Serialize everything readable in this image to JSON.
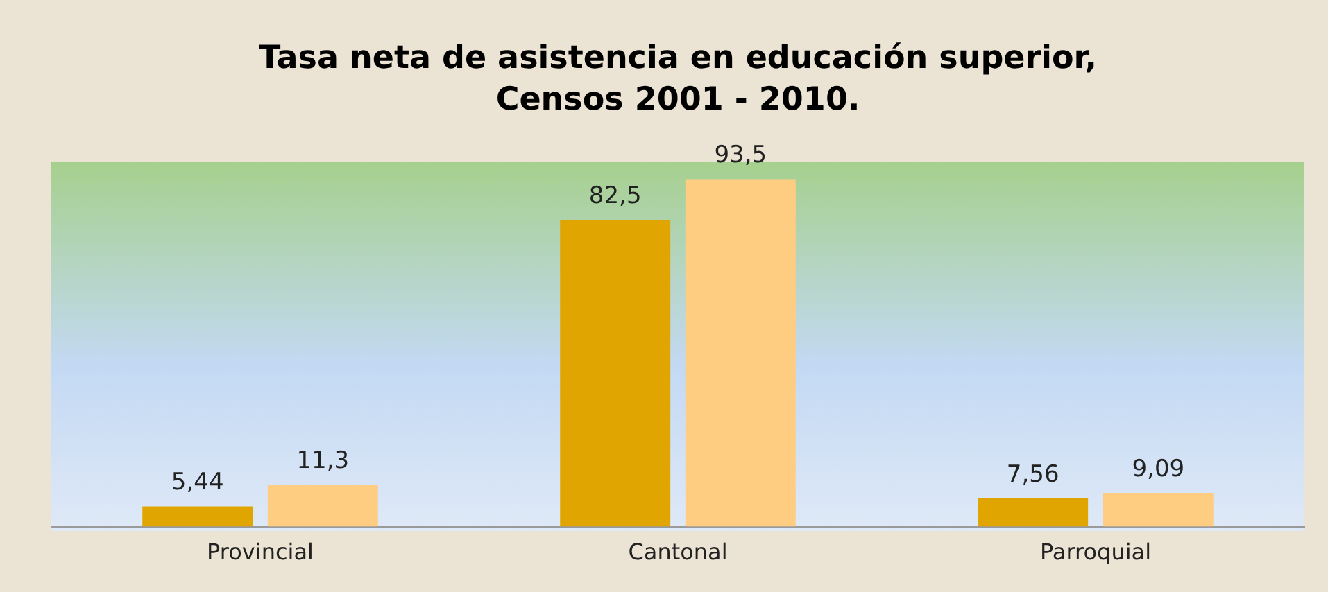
{
  "chart_data": {
    "type": "bar",
    "title": "Tasa neta de asistencia en educación superior,\nCensos 2001 - 2010.",
    "categories": [
      "Provincial",
      "Cantonal",
      "Parroquial"
    ],
    "series": [
      {
        "color": "#e0a500",
        "values": [
          5.44,
          82.5,
          7.56
        ],
        "value_labels": [
          "5,44",
          "82,5",
          "7,56"
        ]
      },
      {
        "color": "#fecd82",
        "values": [
          11.3,
          93.5,
          9.09
        ],
        "value_labels": [
          "11,3",
          "93,5",
          "9,09"
        ]
      }
    ],
    "tick_labels": "x",
    "grid": false,
    "legend": false
  }
}
